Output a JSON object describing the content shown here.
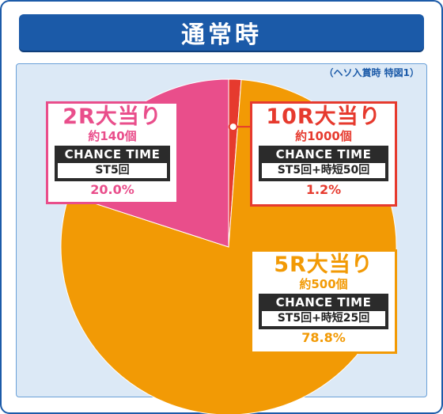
{
  "header": {
    "title": "通常時"
  },
  "note": "（ヘソ入賞時 特図1）",
  "chart_data": {
    "type": "pie",
    "title": "",
    "slices": [
      {
        "key": "r10",
        "label": "10R大当り",
        "balls": "約1000個",
        "ct_label": "CHANCE TIME",
        "ct_detail": "ST5回+時短50回",
        "value": 1.2,
        "value_label": "1.2%",
        "color": "#e63a2e"
      },
      {
        "key": "r5",
        "label": "5R大当り",
        "balls": "約500個",
        "ct_label": "CHANCE TIME",
        "ct_detail": "ST5回+時短25回",
        "value": 78.8,
        "value_label": "78.8%",
        "color": "#f29a05"
      },
      {
        "key": "r2",
        "label": "2R大当り",
        "balls": "約140個",
        "ct_label": "CHANCE TIME",
        "ct_detail": "ST5回",
        "value": 20.0,
        "value_label": "20.0%",
        "color": "#e94e8b"
      }
    ]
  }
}
